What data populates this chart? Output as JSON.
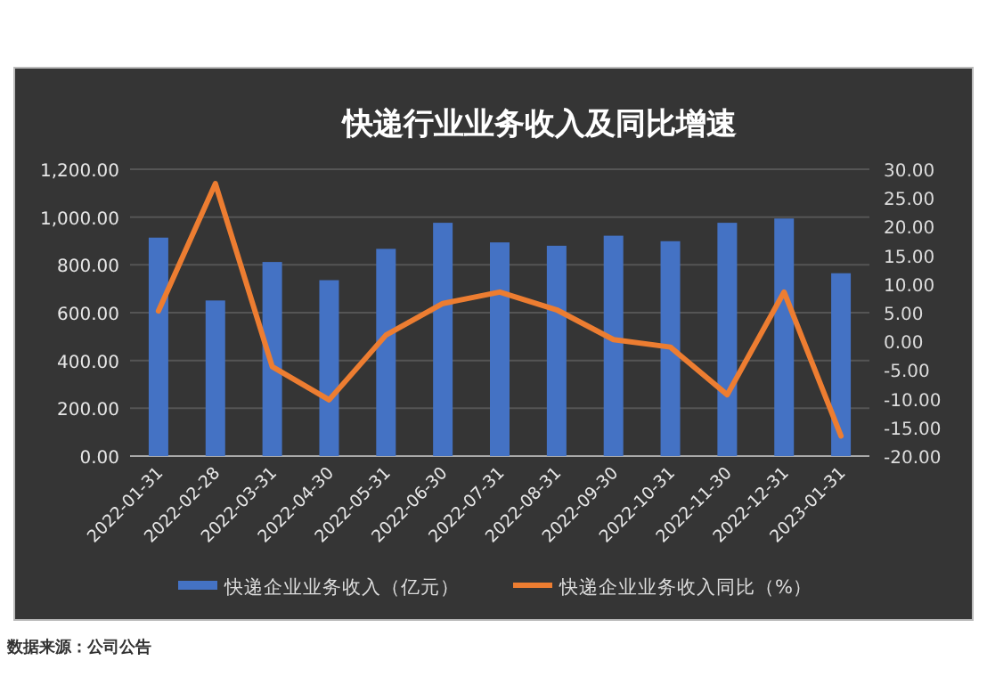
{
  "chart_data": {
    "type": "bar",
    "title": "快递行业业务收入及同比增速",
    "categories": [
      "2022-01-31",
      "2022-02-28",
      "2022-03-31",
      "2022-04-30",
      "2022-05-31",
      "2022-06-30",
      "2022-07-31",
      "2022-08-31",
      "2022-09-30",
      "2022-10-31",
      "2022-11-30",
      "2022-12-31",
      "2023-01-31"
    ],
    "series": [
      {
        "name": "快递企业业务收入（亿元）",
        "color": "#4472c4",
        "values": [
          914,
          651,
          812,
          736,
          867,
          976,
          894,
          880,
          922,
          899,
          976,
          994,
          765
        ]
      },
      {
        "name": "快递企业业务收入同比（%）",
        "type": "line",
        "axis": "y2",
        "color": "#ed7d31",
        "values": [
          5.3,
          27.5,
          -4.4,
          -10.2,
          1.1,
          6.6,
          8.6,
          5.5,
          0.3,
          -1.0,
          -9.3,
          8.6,
          -16.5
        ]
      }
    ],
    "ylim": [
      0,
      1200
    ],
    "yticks": [
      {
        "value": 0,
        "label": "0.00"
      },
      {
        "value": 200,
        "label": "200.00"
      },
      {
        "value": 400,
        "label": "400.00"
      },
      {
        "value": 600,
        "label": "600.00"
      },
      {
        "value": 800,
        "label": "800.00"
      },
      {
        "value": 1000,
        "label": "1,000.00"
      },
      {
        "value": 1200,
        "label": "1,200.00"
      }
    ],
    "y2lim": [
      -20,
      30
    ],
    "y2ticks": [
      {
        "value": -20,
        "label": "-20.00"
      },
      {
        "value": -15,
        "label": "-15.00"
      },
      {
        "value": -10,
        "label": "-10.00"
      },
      {
        "value": -5,
        "label": "-5.00"
      },
      {
        "value": 0,
        "label": "0.00"
      },
      {
        "value": 5,
        "label": "5.00"
      },
      {
        "value": 10,
        "label": "10.00"
      },
      {
        "value": 15,
        "label": "15.00"
      },
      {
        "value": 20,
        "label": "20.00"
      },
      {
        "value": 25,
        "label": "25.00"
      },
      {
        "value": 30,
        "label": "30.00"
      }
    ],
    "grid": "y",
    "legend": "bottom",
    "annotations": [
      "数据来源：公司公告"
    ]
  }
}
